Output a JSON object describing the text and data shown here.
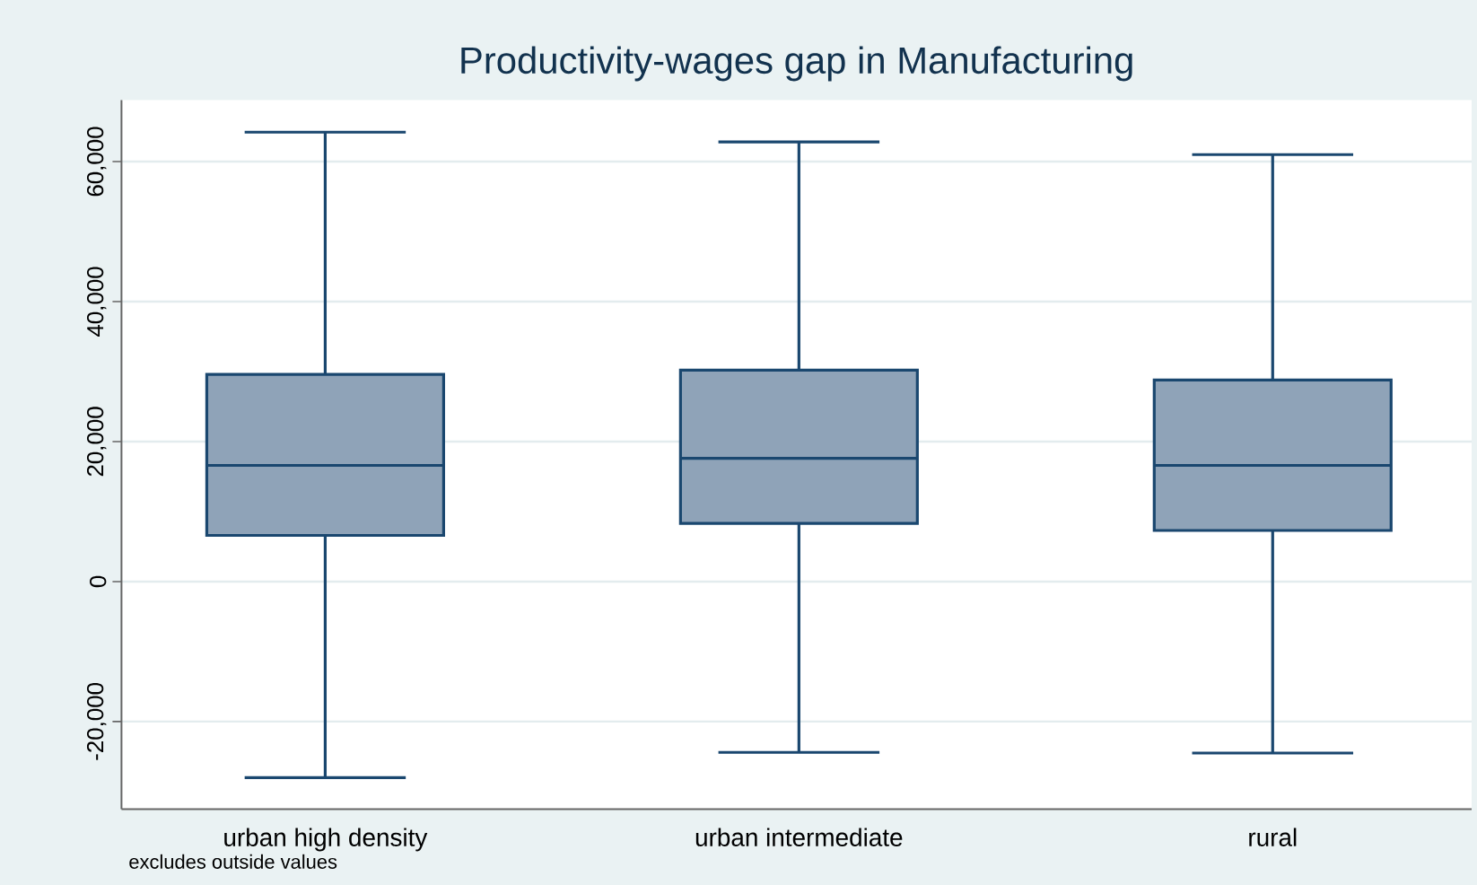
{
  "chart_data": {
    "type": "box",
    "title": "Productivity-wages gap in Manufacturing",
    "categories": [
      "urban high density",
      "urban intermediate",
      "rural"
    ],
    "boxes": [
      {
        "low": -28000,
        "q1": 6600,
        "median": 16600,
        "q3": 29600,
        "high": 64200
      },
      {
        "low": -24400,
        "q1": 8300,
        "median": 17600,
        "q3": 30200,
        "high": 62800
      },
      {
        "low": -24500,
        "q1": 7300,
        "median": 16600,
        "q3": 28800,
        "high": 61000
      }
    ],
    "color": "#8fa3b8",
    "ylim": [
      -32500,
      68800
    ],
    "yticks": [
      {
        "value": -20000,
        "label": "-20,000"
      },
      0,
      {
        "value": 20000,
        "label": "20,000"
      },
      {
        "value": 40000,
        "label": "40,000"
      },
      {
        "value": 60000,
        "label": "60,000"
      }
    ],
    "grid": "y",
    "annotations": [
      "excludes outside values"
    ]
  }
}
